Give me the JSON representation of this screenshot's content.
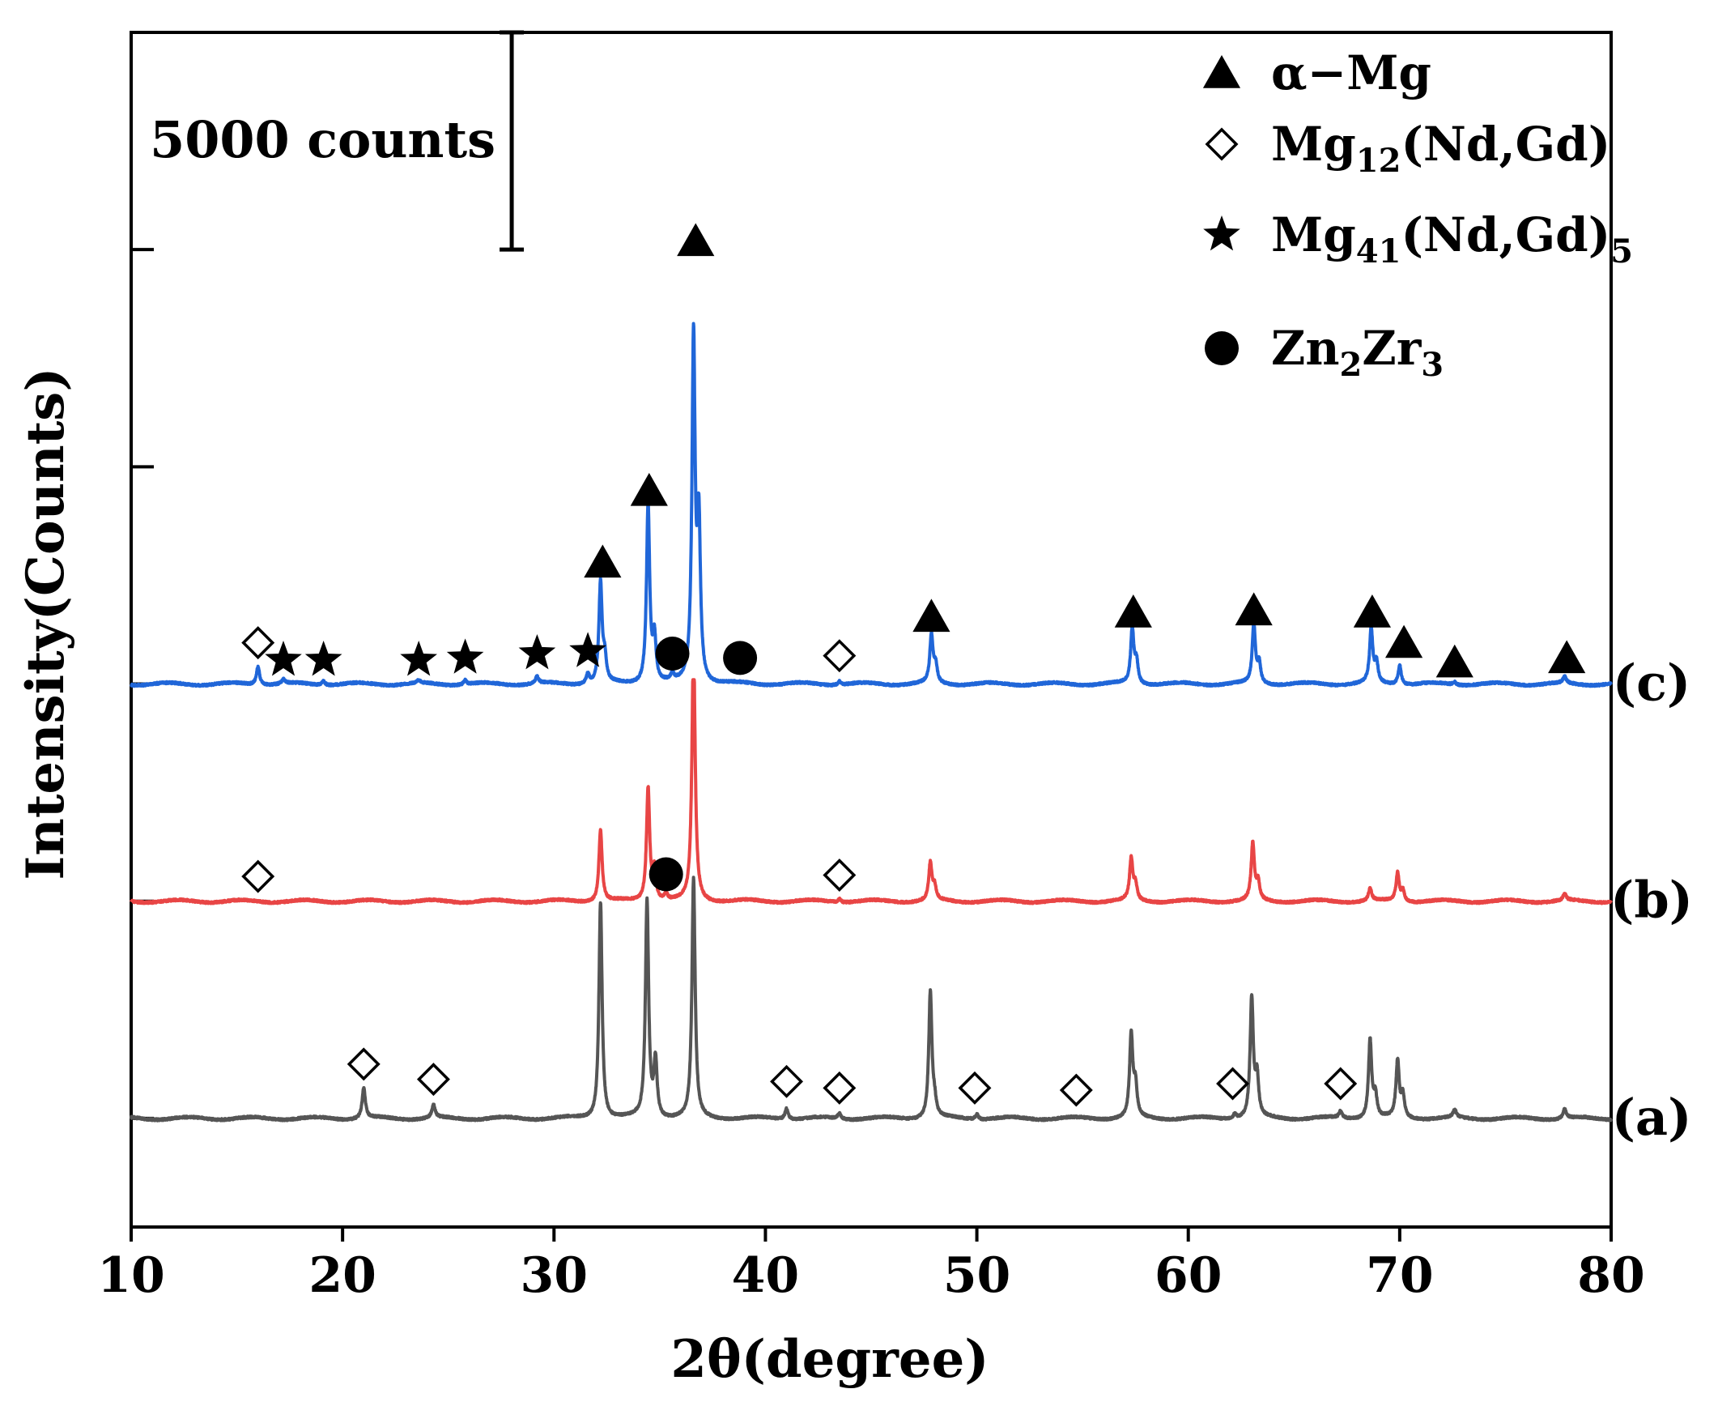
{
  "chart_data": {
    "type": "line",
    "title": "",
    "xlabel": "2θ(degree)",
    "ylabel": "Intensity(Counts)",
    "xlim": [
      10,
      80
    ],
    "xticks": [
      10,
      20,
      30,
      40,
      50,
      60,
      70,
      80
    ],
    "ylim": [
      -2500,
      25000
    ],
    "y_ticks": [
      0,
      5000,
      10000,
      15000,
      20000
    ],
    "grid": false,
    "scale_bar": {
      "label": "5000 counts",
      "value": 5000,
      "y_range": [
        20000,
        25000
      ],
      "x": 28
    },
    "legend": {
      "placement": "top-right",
      "entries": [
        {
          "marker": "triangle",
          "parts": [
            {
              "t": "α−Mg"
            }
          ]
        },
        {
          "marker": "diamond",
          "parts": [
            {
              "t": "Mg"
            },
            {
              "t": "12",
              "sub": true
            },
            {
              "t": "(Nd,Gd)"
            }
          ]
        },
        {
          "marker": "star",
          "parts": [
            {
              "t": "Mg"
            },
            {
              "t": "41",
              "sub": true
            },
            {
              "t": "(Nd,Gd)"
            },
            {
              "t": "5",
              "sub": true
            }
          ]
        },
        {
          "marker": "circle",
          "parts": [
            {
              "t": "Zn"
            },
            {
              "t": "2",
              "sub": true
            },
            {
              "t": "Zr"
            },
            {
              "t": "3",
              "sub": true
            }
          ]
        }
      ]
    },
    "peak_width": 0.09,
    "series": [
      {
        "name": "(a)",
        "label": "(a)",
        "color": "#555555",
        "baseline": 0,
        "clip_top": null,
        "peaks": [
          {
            "x": 21.0,
            "h": 700
          },
          {
            "x": 24.3,
            "h": 300
          },
          {
            "x": 32.2,
            "h": 5000
          },
          {
            "x": 34.4,
            "h": 5000
          },
          {
            "x": 34.8,
            "h": 1300
          },
          {
            "x": 36.6,
            "h": 5500
          },
          {
            "x": 41.0,
            "h": 250
          },
          {
            "x": 43.5,
            "h": 120
          },
          {
            "x": 47.8,
            "h": 2900
          },
          {
            "x": 48.0,
            "h": 300
          },
          {
            "x": 50.0,
            "h": 120
          },
          {
            "x": 57.3,
            "h": 1900
          },
          {
            "x": 57.5,
            "h": 700
          },
          {
            "x": 63.0,
            "h": 2750
          },
          {
            "x": 63.25,
            "h": 900
          },
          {
            "x": 62.2,
            "h": 100
          },
          {
            "x": 67.2,
            "h": 150
          },
          {
            "x": 68.6,
            "h": 1800
          },
          {
            "x": 68.85,
            "h": 500
          },
          {
            "x": 69.9,
            "h": 1300
          },
          {
            "x": 70.15,
            "h": 500
          },
          {
            "x": 72.6,
            "h": 180
          },
          {
            "x": 77.8,
            "h": 220
          }
        ],
        "markers": [
          {
            "type": "diamond",
            "x": 21.0,
            "y": 1250
          },
          {
            "type": "diamond",
            "x": 24.3,
            "y": 900
          },
          {
            "type": "diamond",
            "x": 41.0,
            "y": 850
          },
          {
            "type": "diamond",
            "x": 43.5,
            "y": 700
          },
          {
            "type": "diamond",
            "x": 49.9,
            "y": 700
          },
          {
            "type": "diamond",
            "x": 54.7,
            "y": 650
          },
          {
            "type": "diamond",
            "x": 62.1,
            "y": 800
          },
          {
            "type": "diamond",
            "x": 67.2,
            "y": 800
          }
        ]
      },
      {
        "name": "(b)",
        "label": "(b)",
        "color": "#e84545",
        "baseline": 5000,
        "clip_top": 10100,
        "peaks": [
          {
            "x": 32.2,
            "h": 1650
          },
          {
            "x": 34.45,
            "h": 2600
          },
          {
            "x": 34.75,
            "h": 700
          },
          {
            "x": 35.3,
            "h": 150
          },
          {
            "x": 36.6,
            "h": 6000
          },
          {
            "x": 43.5,
            "h": 80
          },
          {
            "x": 47.8,
            "h": 850
          },
          {
            "x": 48.0,
            "h": 300
          },
          {
            "x": 57.3,
            "h": 950
          },
          {
            "x": 57.5,
            "h": 350
          },
          {
            "x": 63.05,
            "h": 1300
          },
          {
            "x": 63.3,
            "h": 400
          },
          {
            "x": 68.6,
            "h": 280
          },
          {
            "x": 69.9,
            "h": 650
          },
          {
            "x": 70.15,
            "h": 250
          },
          {
            "x": 77.8,
            "h": 150
          }
        ],
        "markers": [
          {
            "type": "diamond",
            "x": 16.0,
            "y": 5570
          },
          {
            "type": "circle",
            "x": 35.3,
            "y": 5620
          },
          {
            "type": "diamond",
            "x": 43.5,
            "y": 5600
          }
        ]
      },
      {
        "name": "(c)",
        "label": "(c)",
        "color": "#2066d8",
        "baseline": 10000,
        "clip_top": null,
        "peaks": [
          {
            "x": 16.0,
            "h": 420
          },
          {
            "x": 17.2,
            "h": 100
          },
          {
            "x": 19.1,
            "h": 90
          },
          {
            "x": 23.6,
            "h": 60
          },
          {
            "x": 25.8,
            "h": 100
          },
          {
            "x": 29.2,
            "h": 160
          },
          {
            "x": 31.6,
            "h": 220
          },
          {
            "x": 32.2,
            "h": 2300
          },
          {
            "x": 32.4,
            "h": 500
          },
          {
            "x": 34.45,
            "h": 4100
          },
          {
            "x": 34.75,
            "h": 1000
          },
          {
            "x": 35.6,
            "h": 150
          },
          {
            "x": 36.6,
            "h": 7900
          },
          {
            "x": 36.85,
            "h": 3500
          },
          {
            "x": 43.5,
            "h": 80
          },
          {
            "x": 47.85,
            "h": 1100
          },
          {
            "x": 48.05,
            "h": 400
          },
          {
            "x": 57.35,
            "h": 1250
          },
          {
            "x": 57.55,
            "h": 500
          },
          {
            "x": 63.1,
            "h": 1350
          },
          {
            "x": 63.35,
            "h": 450
          },
          {
            "x": 68.65,
            "h": 1250
          },
          {
            "x": 68.9,
            "h": 450
          },
          {
            "x": 70.0,
            "h": 450
          },
          {
            "x": 72.6,
            "h": 60
          },
          {
            "x": 77.8,
            "h": 150
          }
        ],
        "markers": [
          {
            "type": "triangle",
            "x": 32.3,
            "y": 12800
          },
          {
            "type": "triangle",
            "x": 34.5,
            "y": 14450
          },
          {
            "type": "triangle",
            "x": 36.7,
            "y": 20200
          },
          {
            "type": "triangle",
            "x": 47.85,
            "y": 11550
          },
          {
            "type": "triangle",
            "x": 57.4,
            "y": 11650
          },
          {
            "type": "triangle",
            "x": 63.1,
            "y": 11700
          },
          {
            "type": "triangle",
            "x": 68.7,
            "y": 11650
          },
          {
            "type": "triangle",
            "x": 70.2,
            "y": 10950
          },
          {
            "type": "triangle",
            "x": 72.6,
            "y": 10500
          },
          {
            "type": "triangle",
            "x": 77.9,
            "y": 10600
          },
          {
            "type": "diamond",
            "x": 16.0,
            "y": 10950
          },
          {
            "type": "star",
            "x": 17.2,
            "y": 10550
          },
          {
            "type": "star",
            "x": 19.1,
            "y": 10550
          },
          {
            "type": "star",
            "x": 23.6,
            "y": 10550
          },
          {
            "type": "star",
            "x": 25.8,
            "y": 10600
          },
          {
            "type": "star",
            "x": 29.2,
            "y": 10700
          },
          {
            "type": "star",
            "x": 31.6,
            "y": 10750
          },
          {
            "type": "circle",
            "x": 35.6,
            "y": 10700
          },
          {
            "type": "circle",
            "x": 38.8,
            "y": 10600
          },
          {
            "type": "diamond",
            "x": 43.5,
            "y": 10650
          }
        ]
      }
    ]
  }
}
